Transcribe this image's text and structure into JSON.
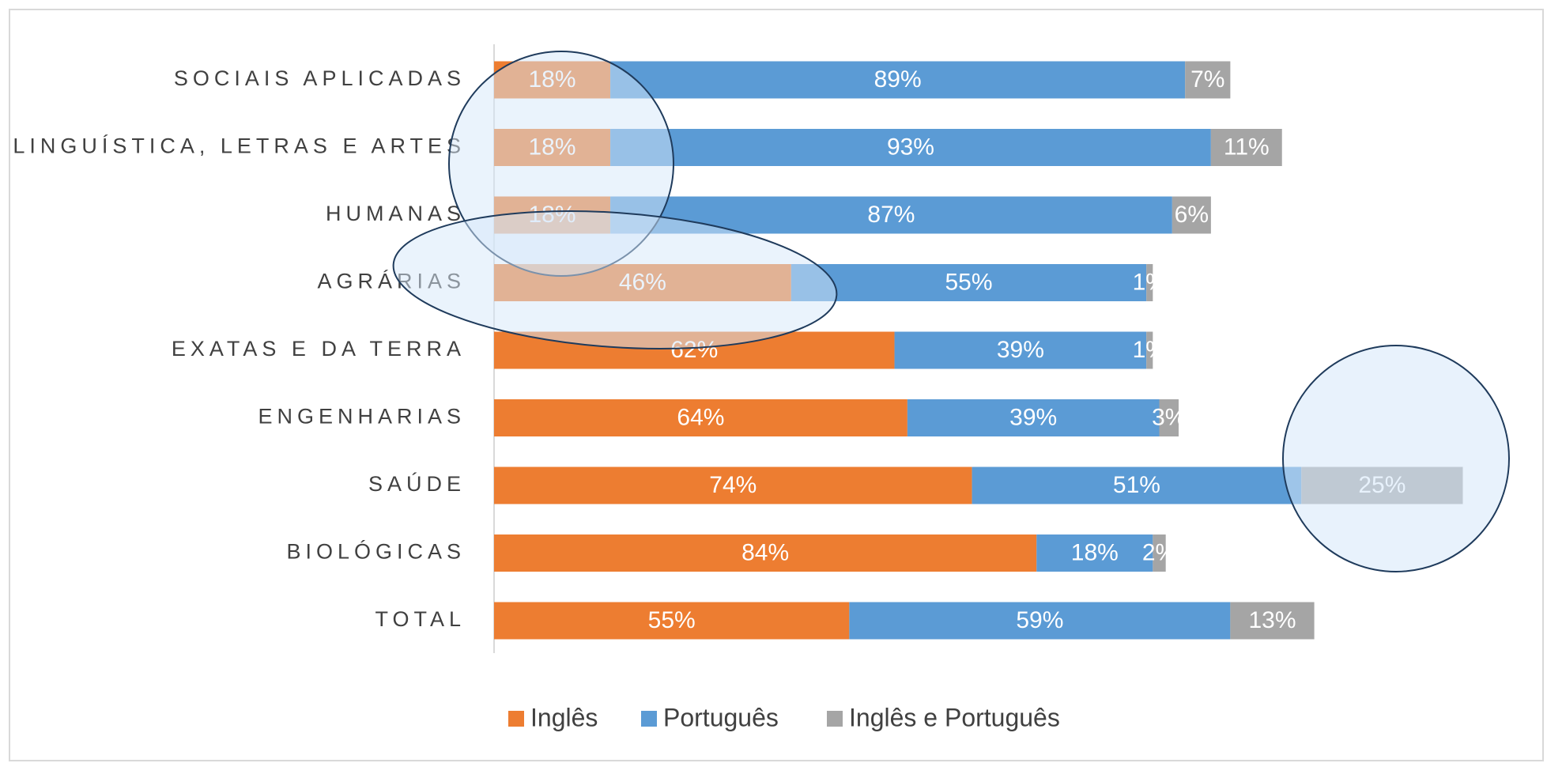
{
  "chart_data": {
    "type": "stacked_barh",
    "categories": [
      "SOCIAIS APLICADAS",
      "LINGUÍSTICA, LETRAS E ARTES",
      "HUMANAS",
      "AGRÁRIAS",
      "EXATAS E DA TERRA",
      "ENGENHARIAS",
      "SAÚDE",
      "BIOLÓGICAS",
      "TOTAL"
    ],
    "series": [
      {
        "name": "Inglês",
        "color": "#ed7d31",
        "values": [
          18,
          18,
          18,
          46,
          62,
          64,
          74,
          84,
          55
        ],
        "value_labels": [
          "18%",
          "18%",
          "18%",
          "46%",
          "62%",
          "64%",
          "74%",
          "84%",
          "55%"
        ]
      },
      {
        "name": "Português",
        "color": "#5b9bd5",
        "values": [
          89,
          93,
          87,
          55,
          39,
          39,
          51,
          18,
          59
        ],
        "value_labels": [
          "89%",
          "93%",
          "87%",
          "55%",
          "39%",
          "39%",
          "51%",
          "18%",
          "59%"
        ]
      },
      {
        "name": "Inglês e Português",
        "color": "#a5a5a5",
        "values": [
          7,
          11,
          6,
          1,
          1,
          3,
          25,
          2,
          13
        ],
        "value_labels": [
          "7%",
          "11%",
          "6%",
          "1%",
          "1%",
          "3%",
          "25%",
          "2%",
          "13%"
        ]
      }
    ],
    "legend": "bottom"
  }
}
